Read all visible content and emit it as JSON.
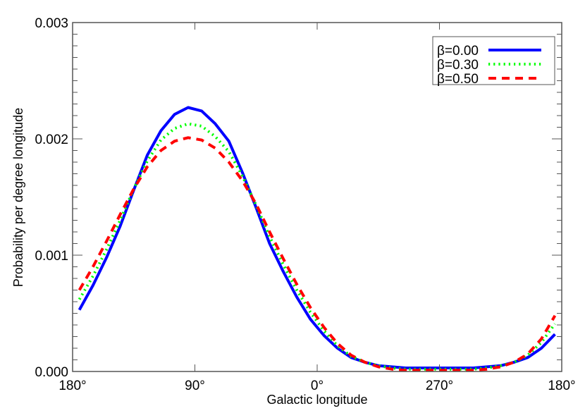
{
  "chart_data": {
    "type": "line",
    "title": "",
    "xlabel": "Galactic longitude",
    "ylabel": "Probability per degree longitude",
    "xlim": [
      0,
      360
    ],
    "ylim": [
      0.0,
      0.003
    ],
    "x_tick_positions": [
      0,
      90,
      180,
      270,
      360
    ],
    "x_tick_labels": [
      "180°",
      "90°",
      "0°",
      "270°",
      "180°"
    ],
    "y_tick_positions": [
      0.0,
      0.001,
      0.002,
      0.003
    ],
    "y_tick_labels": [
      "0.000",
      "0.001",
      "0.002",
      "0.003"
    ],
    "y_minor_ticks_per_major": 10,
    "grid": false,
    "legend_position": "upper right",
    "x_note": "x is position along the axis in degrees from the left edge (180° → 90° → 0° → 270° → 180°)",
    "x": [
      5,
      15,
      25,
      35,
      45,
      55,
      65,
      75,
      85,
      95,
      105,
      115,
      125,
      135,
      145,
      155,
      165,
      175,
      185,
      195,
      205,
      215,
      225,
      235,
      245,
      255,
      265,
      275,
      285,
      295,
      305,
      315,
      325,
      335,
      345,
      355
    ],
    "series": [
      {
        "name": "β=0.00",
        "color": "#0000ff",
        "style": "solid",
        "values": [
          0.00053,
          0.00074,
          0.00098,
          0.00125,
          0.00156,
          0.00186,
          0.00207,
          0.00221,
          0.00227,
          0.00224,
          0.00213,
          0.00198,
          0.00171,
          0.00141,
          0.0011,
          0.00086,
          0.00064,
          0.00045,
          0.00031,
          0.0002,
          0.00012,
          8e-05,
          5e-05,
          4e-05,
          3e-05,
          3e-05,
          3e-05,
          3e-05,
          3e-05,
          3e-05,
          4e-05,
          5e-05,
          8e-05,
          0.00012,
          0.0002,
          0.00032
        ]
      },
      {
        "name": "β=0.30",
        "color": "#00ff00",
        "style": "dotted",
        "values": [
          0.00062,
          0.00082,
          0.00105,
          0.0013,
          0.00157,
          0.00181,
          0.00199,
          0.00209,
          0.00213,
          0.00211,
          0.00202,
          0.00189,
          0.00168,
          0.00143,
          0.00116,
          0.00092,
          0.0007,
          0.00051,
          0.00035,
          0.00022,
          0.00013,
          8e-05,
          5e-05,
          3e-05,
          2e-05,
          2e-05,
          2e-05,
          2e-05,
          2e-05,
          2e-05,
          3e-05,
          5e-05,
          8e-05,
          0.00014,
          0.00025,
          0.00041
        ]
      },
      {
        "name": "β=0.50",
        "color": "#ff0000",
        "style": "dashed",
        "values": [
          0.0007,
          0.0009,
          0.00112,
          0.00135,
          0.00157,
          0.00176,
          0.0019,
          0.00198,
          0.00201,
          0.00199,
          0.00192,
          0.0018,
          0.00164,
          0.00144,
          0.0012,
          0.00097,
          0.00075,
          0.00055,
          0.00038,
          0.00024,
          0.00014,
          8e-05,
          4e-05,
          2e-05,
          1e-05,
          1e-05,
          1e-05,
          1e-05,
          1e-05,
          1e-05,
          2e-05,
          4e-05,
          8e-05,
          0.00015,
          0.00028,
          0.00048
        ]
      }
    ]
  }
}
